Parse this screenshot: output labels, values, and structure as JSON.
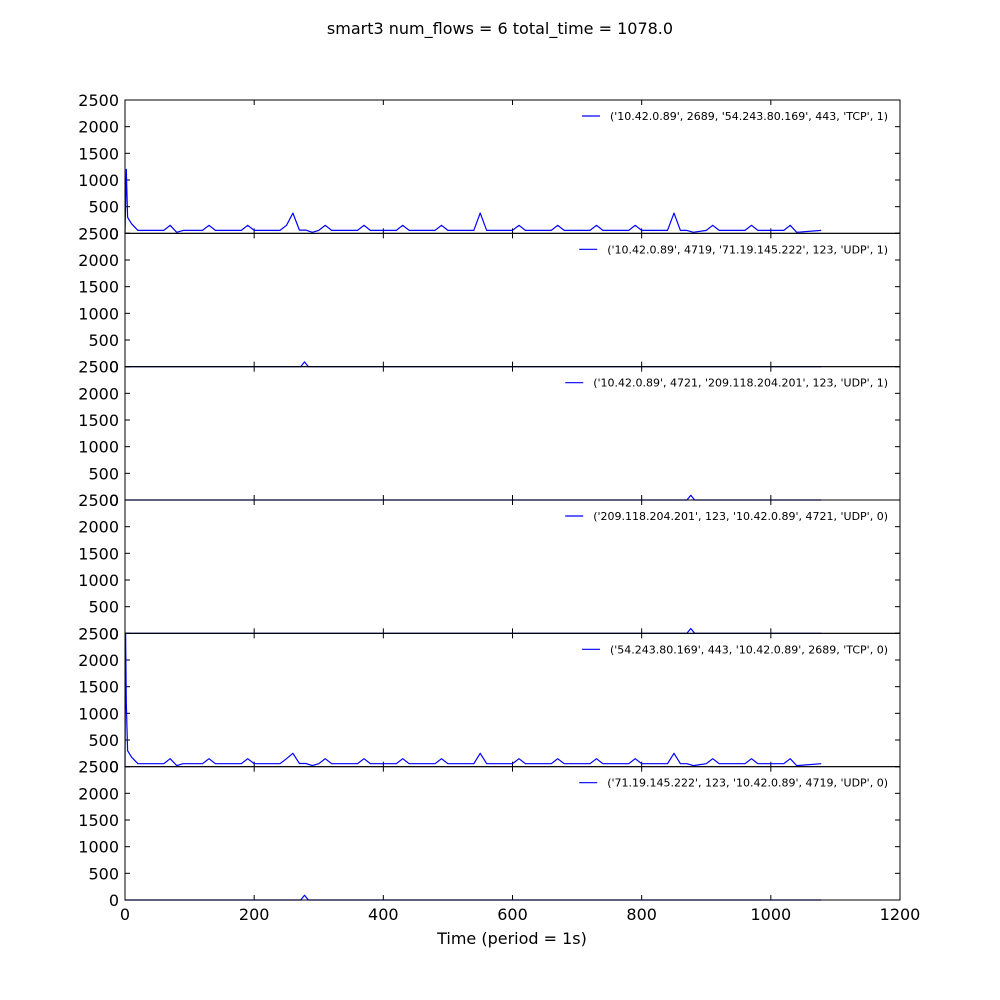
{
  "chart_data": {
    "type": "line",
    "title": "smart3 num_flows = 6 total_time = 1078.0",
    "xlabel": "Time (period = 1s)",
    "xlim": [
      0,
      1200
    ],
    "ylim": [
      0,
      2500
    ],
    "x_ticks": [
      "0",
      "200",
      "400",
      "600",
      "800",
      "1000",
      "1200"
    ],
    "y_ticks": [
      "0",
      "500",
      "1000",
      "1500",
      "2000",
      "2500"
    ],
    "line_color": "#0000ff",
    "panels": [
      {
        "legend": "('10.42.0.89', 2689, '54.243.80.169', 443, 'TCP', 1)",
        "x": [
          0,
          2,
          4,
          10,
          20,
          60,
          70,
          80,
          90,
          120,
          130,
          140,
          180,
          190,
          200,
          240,
          250,
          260,
          270,
          280,
          290,
          300,
          310,
          320,
          360,
          370,
          380,
          420,
          430,
          440,
          480,
          490,
          500,
          540,
          550,
          560,
          600,
          610,
          620,
          660,
          670,
          680,
          720,
          730,
          740,
          780,
          790,
          800,
          840,
          850,
          860,
          870,
          880,
          900,
          910,
          920,
          960,
          970,
          980,
          1020,
          1030,
          1040,
          1078
        ],
        "y": [
          0,
          1200,
          300,
          180,
          55,
          55,
          150,
          20,
          55,
          55,
          150,
          55,
          55,
          150,
          55,
          55,
          150,
          380,
          60,
          60,
          20,
          55,
          150,
          55,
          55,
          150,
          55,
          55,
          150,
          55,
          55,
          150,
          55,
          55,
          380,
          55,
          55,
          150,
          55,
          55,
          150,
          55,
          55,
          150,
          55,
          55,
          150,
          55,
          55,
          380,
          55,
          55,
          20,
          55,
          150,
          55,
          55,
          150,
          55,
          55,
          150,
          20,
          55
        ]
      },
      {
        "legend": "('10.42.0.89', 4719, '71.19.145.222', 123, 'UDP', 1)",
        "x": [
          0,
          272,
          278,
          284,
          1078
        ],
        "y": [
          0,
          0,
          90,
          0,
          0
        ]
      },
      {
        "legend": "('10.42.0.89', 4721, '209.118.204.201', 123, 'UDP', 1)",
        "x": [
          0,
          870,
          876,
          882,
          1078
        ],
        "y": [
          0,
          0,
          90,
          0,
          0
        ]
      },
      {
        "legend": "('209.118.204.201', 123, '10.42.0.89', 4721, 'UDP', 0)",
        "x": [
          0,
          870,
          876,
          882,
          1078
        ],
        "y": [
          0,
          0,
          90,
          0,
          0
        ]
      },
      {
        "legend": "('54.243.80.169', 443, '10.42.0.89', 2689, 'TCP', 0)",
        "x": [
          0,
          1,
          2,
          4,
          10,
          20,
          60,
          70,
          80,
          90,
          120,
          130,
          140,
          180,
          190,
          200,
          240,
          250,
          260,
          270,
          280,
          290,
          300,
          310,
          320,
          360,
          370,
          380,
          420,
          430,
          440,
          480,
          490,
          500,
          540,
          550,
          560,
          600,
          610,
          620,
          660,
          670,
          680,
          720,
          730,
          740,
          780,
          790,
          800,
          840,
          850,
          860,
          870,
          880,
          900,
          910,
          920,
          960,
          970,
          980,
          1020,
          1030,
          1040,
          1078
        ],
        "y": [
          0,
          2500,
          1200,
          300,
          180,
          55,
          55,
          150,
          20,
          55,
          55,
          150,
          55,
          55,
          150,
          55,
          55,
          150,
          250,
          60,
          60,
          20,
          55,
          150,
          55,
          55,
          150,
          55,
          55,
          150,
          55,
          55,
          150,
          55,
          55,
          250,
          55,
          55,
          150,
          55,
          55,
          150,
          55,
          55,
          150,
          55,
          55,
          150,
          55,
          55,
          250,
          55,
          55,
          20,
          55,
          150,
          55,
          55,
          150,
          55,
          55,
          150,
          20,
          55
        ]
      },
      {
        "legend": "('71.19.145.222', 123, '10.42.0.89', 4719, 'UDP', 0)",
        "x": [
          0,
          272,
          278,
          284,
          1078
        ],
        "y": [
          0,
          0,
          90,
          0,
          0
        ]
      }
    ]
  }
}
